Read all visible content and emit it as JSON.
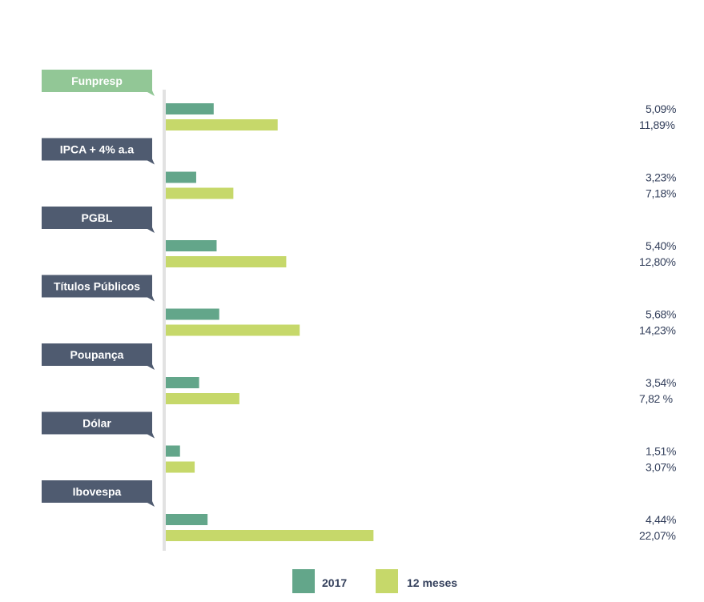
{
  "chart_data": {
    "type": "bar",
    "orientation": "horizontal",
    "categories": [
      "Funpresp",
      "IPCA + 4% a.a",
      "PGBL",
      "Títulos Públicos",
      "Poupança",
      "Dólar",
      "Ibovespa"
    ],
    "series": [
      {
        "name": "2017",
        "color": "#63a68a",
        "values": [
          5.09,
          3.23,
          5.4,
          5.68,
          3.54,
          1.51,
          4.44
        ],
        "labels": [
          "5,09%",
          "3,23%",
          "5,40%",
          "5,68%",
          "3,54%",
          "1,51%",
          "4,44%"
        ]
      },
      {
        "name": "12 meses",
        "color": "#c6d86a",
        "values": [
          11.89,
          7.18,
          12.8,
          14.23,
          7.82,
          3.07,
          22.07
        ],
        "labels": [
          "11,89%",
          "7,18%",
          "12,80%",
          "14,23%",
          "7,82 %",
          "3,07%",
          "22,07%"
        ]
      }
    ],
    "category_colors": [
      "#92c796",
      "#4f5b70",
      "#4f5b70",
      "#4f5b70",
      "#4f5b70",
      "#4f5b70",
      "#4f5b70"
    ],
    "axis_color": "#e2e2e2",
    "label_color": "#34405c",
    "legend": {
      "position": "bottom"
    }
  }
}
